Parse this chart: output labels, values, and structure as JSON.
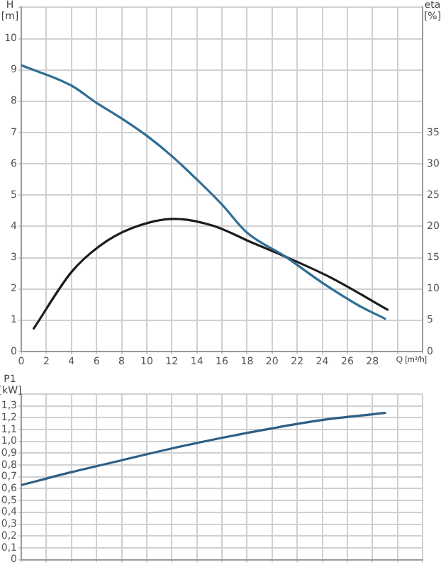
{
  "chart_data": [
    {
      "type": "line",
      "xlabel": "Q [m³/h]",
      "ylabel": "H [m]",
      "y2label": "eta [%]",
      "xlim": [
        0,
        32
      ],
      "xticks": [
        0,
        2,
        4,
        6,
        8,
        10,
        12,
        14,
        16,
        18,
        20,
        22,
        24,
        26,
        28,
        {
          "value": 30,
          "label": null
        },
        {
          "value": 32,
          "label": null
        }
      ],
      "ylim": [
        0,
        11
      ],
      "yticks": [
        0,
        1,
        2,
        3,
        4,
        5,
        6,
        7,
        8,
        9,
        10,
        {
          "value": 11,
          "label": null
        }
      ],
      "y2lim": [
        0,
        55
      ],
      "y2ticks": [
        0,
        5,
        10,
        15,
        20,
        25,
        30,
        35
      ],
      "grid": true,
      "legend": false,
      "marker": "none",
      "line_style": "solid",
      "series": [
        {
          "color": "#2f6e96",
          "x": [
            0,
            4,
            6,
            8,
            10,
            12,
            14,
            16,
            18,
            21,
            24,
            27,
            29
          ],
          "values": [
            9.15,
            8.5,
            7.95,
            7.45,
            6.9,
            6.25,
            5.5,
            4.7,
            3.8,
            3.05,
            2.2,
            1.45,
            1.05
          ]
        },
        {
          "color": "#1c1c1c",
          "axis": "y2",
          "x": [
            1,
            4,
            6.2,
            8.8,
            12.2,
            15.3,
            18.3,
            20.9,
            24.7,
            29.2
          ],
          "values": [
            3.7,
            12.7,
            16.8,
            19.7,
            21.2,
            20.1,
            17.5,
            15.3,
            11.8,
            6.7
          ]
        }
      ]
    },
    {
      "type": "line",
      "ylabel": "P1 [kW]",
      "xlim": [
        0,
        32
      ],
      "xticks": [
        0,
        2,
        4,
        6,
        8,
        10,
        12,
        14,
        16,
        18,
        20,
        22,
        24,
        26,
        28,
        30,
        32
      ],
      "ylim": [
        0,
        1.4
      ],
      "yticks": [
        0,
        {
          "value": 0.1,
          "label": "0,1"
        },
        {
          "value": 0.2,
          "label": "0,2"
        },
        {
          "value": 0.3,
          "label": "0,3"
        },
        {
          "value": 0.4,
          "label": "0,4"
        },
        {
          "value": 0.5,
          "label": "0,5"
        },
        {
          "value": 0.6,
          "label": "0,6"
        },
        {
          "value": 0.7,
          "label": "0,7"
        },
        {
          "value": 0.8,
          "label": "0,8"
        },
        {
          "value": 0.9,
          "label": "0,9"
        },
        {
          "value": 1,
          "label": "1,0"
        },
        {
          "value": 1.1,
          "label": "1,1"
        },
        {
          "value": 1.2,
          "label": "1,2"
        },
        {
          "value": 1.3,
          "label": "1,3"
        },
        {
          "value": 1.4,
          "label": null
        }
      ],
      "tick_labels": "y",
      "grid": true,
      "legend": false,
      "marker": "none",
      "line_style": "solid",
      "series": [
        {
          "color": "#2d5f86",
          "x": [
            0,
            4,
            8,
            12,
            16,
            20,
            24,
            29
          ],
          "values": [
            0.63,
            0.74,
            0.84,
            0.94,
            1.03,
            1.11,
            1.18,
            1.24
          ]
        }
      ]
    }
  ]
}
